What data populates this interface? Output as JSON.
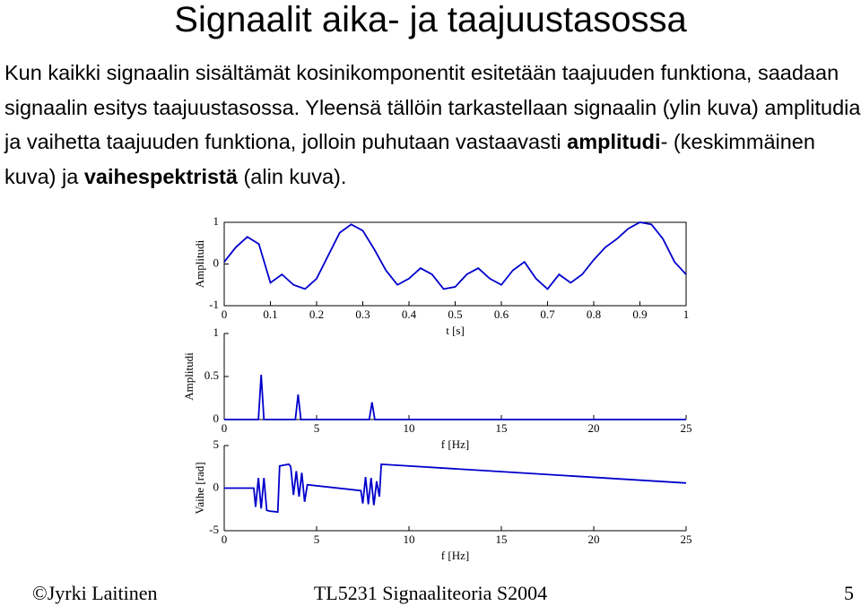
{
  "title": "Signaalit aika- ja taajuustasossa",
  "paragraph": [
    "Kun kaikki signaalin sisältämät kosinikomponentit esitetään taajuuden funktiona, saadaan signaalin esitys taajuustasossa. Yleensä tällöin tarkastellaan signaalin (ylin kuva) amplitudia ja vaihetta taajuuden funktiona, jolloin puhutaan vastaavasti ",
    "amplitudi",
    "- (keskimmäinen kuva) ja ",
    "vaihespektristä",
    " (alin kuva)."
  ],
  "footer": {
    "author": "©Jyrki Laitinen",
    "course": "TL5231 Signaaliteoria S2004",
    "page": "5"
  },
  "chart_data": [
    {
      "type": "line",
      "x_label": "t [s]",
      "y_label": "Amplitudi",
      "color": "#0000cc",
      "box": true,
      "xlim": [
        0,
        1
      ],
      "ylim": [
        -1,
        1
      ],
      "xticks": [
        0,
        0.1,
        0.2,
        0.3,
        0.4,
        0.5,
        0.6,
        0.7,
        0.8,
        0.9,
        1
      ],
      "yticks": [
        -1,
        0,
        1
      ],
      "x": [
        0,
        0.025,
        0.05,
        0.075,
        0.1,
        0.125,
        0.15,
        0.175,
        0.2,
        0.225,
        0.25,
        0.275,
        0.3,
        0.325,
        0.35,
        0.375,
        0.4,
        0.425,
        0.45,
        0.475,
        0.5,
        0.525,
        0.55,
        0.575,
        0.6,
        0.625,
        0.65,
        0.675,
        0.7,
        0.725,
        0.75,
        0.775,
        0.8,
        0.825,
        0.85,
        0.875,
        0.9,
        0.925,
        0.95,
        0.975,
        1
      ],
      "values": [
        0.05,
        0.4,
        0.65,
        0.48,
        -0.45,
        -0.25,
        -0.5,
        -0.6,
        -0.35,
        0.2,
        0.75,
        0.95,
        0.8,
        0.35,
        -0.15,
        -0.5,
        -0.35,
        -0.1,
        -0.25,
        -0.6,
        -0.55,
        -0.25,
        -0.1,
        -0.35,
        -0.5,
        -0.15,
        0.05,
        -0.35,
        -0.6,
        -0.25,
        -0.45,
        -0.25,
        0.1,
        0.4,
        0.6,
        0.85,
        1.0,
        0.95,
        0.6,
        0.05,
        -0.25
      ]
    },
    {
      "type": "line",
      "x_label": "f [Hz]",
      "y_label": "Amplitudi",
      "color": "#0000cc",
      "box": false,
      "xlim": [
        0,
        25
      ],
      "ylim": [
        0,
        1
      ],
      "xticks": [
        0,
        5,
        10,
        15,
        20,
        25
      ],
      "yticks": [
        0,
        0.5,
        1
      ],
      "x": [
        0,
        1.85,
        2,
        2.15,
        3.85,
        4,
        4.15,
        7.85,
        8,
        8.15,
        25
      ],
      "values": [
        0,
        0,
        0.52,
        0,
        0,
        0.29,
        0,
        0,
        0.2,
        0,
        0
      ]
    },
    {
      "type": "line",
      "x_label": "f [Hz]",
      "y_label": "Vaihe [rad]",
      "color": "#0000cc",
      "box": false,
      "xlim": [
        0,
        25
      ],
      "ylim": [
        -5,
        5
      ],
      "xticks": [
        0,
        5,
        10,
        15,
        20,
        25
      ],
      "yticks": [
        -5,
        0,
        5
      ],
      "x": [
        0,
        1.6,
        1.7,
        1.85,
        2.0,
        2.15,
        2.3,
        2.45,
        2.9,
        3.0,
        3.5,
        3.6,
        3.75,
        3.9,
        4.05,
        4.2,
        4.35,
        4.5,
        7.4,
        7.5,
        7.65,
        7.8,
        7.95,
        8.1,
        8.25,
        8.4,
        8.5,
        25
      ],
      "values": [
        0,
        0,
        -2.2,
        1.2,
        -2.4,
        1.2,
        -2.6,
        -2.7,
        -2.8,
        2.6,
        2.8,
        2.5,
        -0.8,
        2.0,
        -1.0,
        1.8,
        -1.6,
        0.4,
        -0.3,
        -1.8,
        1.3,
        -1.9,
        1.2,
        -2.0,
        0.8,
        -1.0,
        2.8,
        0.6
      ]
    }
  ]
}
